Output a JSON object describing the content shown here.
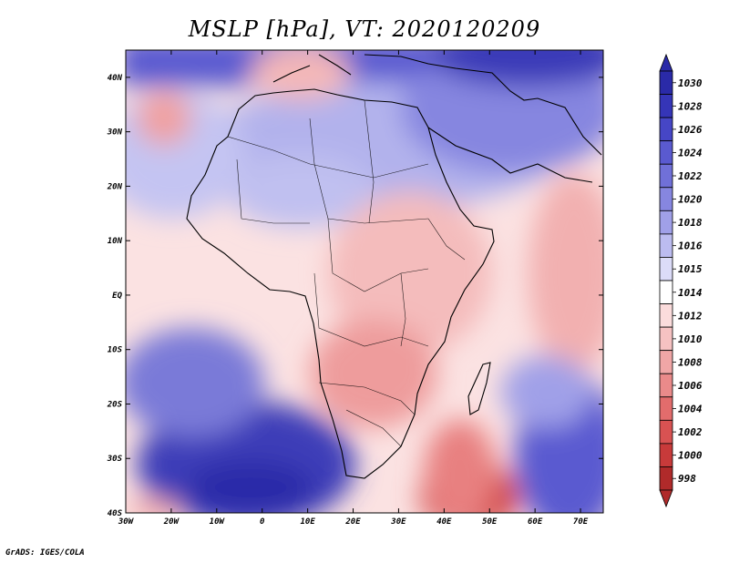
{
  "title": "MSLP [hPa], VT: 2020120209",
  "credit": "GrADS: IGES/COLA",
  "map": {
    "lon_range": [
      -30,
      75
    ],
    "lat_range": [
      -40,
      45
    ],
    "lon_ticks": [
      "30W",
      "20W",
      "10W",
      "0",
      "10E",
      "20E",
      "30E",
      "40E",
      "50E",
      "60E",
      "70E"
    ],
    "lon_tick_values": [
      -30,
      -20,
      -10,
      0,
      10,
      20,
      30,
      40,
      50,
      60,
      70
    ],
    "lat_ticks": [
      "40N",
      "30N",
      "20N",
      "10N",
      "EQ",
      "10S",
      "20S",
      "30S",
      "40S"
    ],
    "lat_tick_values": [
      40,
      30,
      20,
      10,
      0,
      -10,
      -20,
      -30,
      -40
    ]
  },
  "colorbar": {
    "labels": [
      "1030",
      "1028",
      "1026",
      "1024",
      "1022",
      "1020",
      "1018",
      "1016",
      "1015",
      "1014",
      "1012",
      "1010",
      "1008",
      "1006",
      "1004",
      "1002",
      "1000",
      "998"
    ],
    "colors": [
      "#2a2aa8",
      "#3535b8",
      "#4646c6",
      "#5a5ad0",
      "#7070d8",
      "#8686e0",
      "#a0a0e8",
      "#bcbcf0",
      "#dcdcf8",
      "#ffffff",
      "#fbdcdc",
      "#f6c2c2",
      "#f0a6a6",
      "#ea8a8a",
      "#e26c6c",
      "#d85252",
      "#c83a3a",
      "#b02a2a"
    ]
  }
}
